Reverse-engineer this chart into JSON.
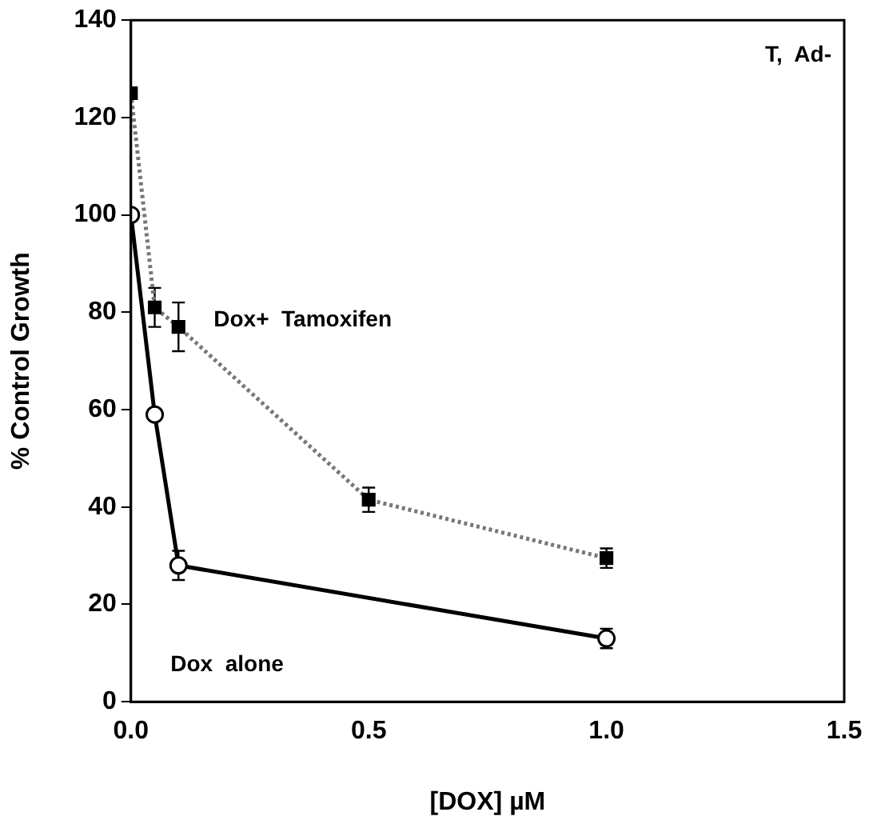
{
  "chart_data": {
    "type": "line",
    "xlabel": "[DOX] µM",
    "ylabel": "% Control Growth",
    "annotations": [
      "T,  Ad-"
    ],
    "xlim": [
      0,
      1.5
    ],
    "xticks": [
      {
        "value": 0,
        "label": "0.0"
      },
      {
        "value": 0.5,
        "label": "0.5"
      },
      {
        "value": 1,
        "label": "1.0"
      },
      {
        "value": 1.5,
        "label": "1.5"
      }
    ],
    "ylim": [
      0,
      140
    ],
    "yticks": [
      0,
      20,
      40,
      60,
      80,
      100,
      120,
      140
    ],
    "grid": false,
    "legend": false,
    "series": [
      {
        "name": "Dox+  Tamoxifen",
        "color": "#777777",
        "marker": "square",
        "line_style": "dotted",
        "x": [
          0,
          0.05,
          0.1,
          0.5,
          1.0
        ],
        "values": [
          125,
          81,
          77,
          41.5,
          29.5
        ],
        "errors": [
          null,
          4,
          5,
          2.5,
          2
        ]
      },
      {
        "name": "Dox  alone",
        "color": "#000000",
        "marker": "circle",
        "line_style": "solid",
        "x": [
          0,
          0.05,
          0.1,
          1.0
        ],
        "values": [
          100,
          59,
          28,
          13
        ],
        "errors": [
          null,
          null,
          3,
          2
        ]
      }
    ]
  }
}
